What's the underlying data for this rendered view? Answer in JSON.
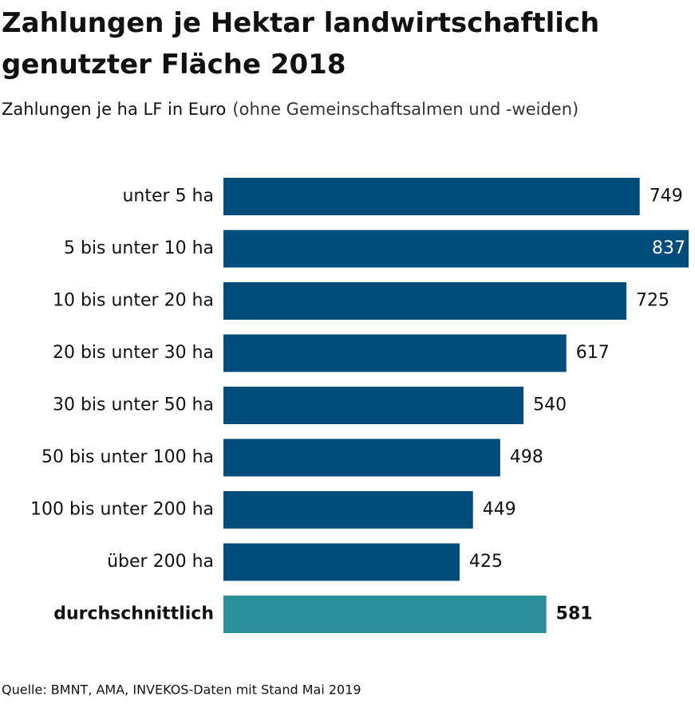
{
  "chart_data": {
    "type": "bar",
    "orientation": "horizontal",
    "title": "Zahlungen je Hektar landwirtschaftlich genutzter Fläche 2018",
    "subtitle": "Zahlungen je ha LF in Euro",
    "subtitle_note": "(ohne Gemeinschaftsalmen und -weiden)",
    "source": "Quelle: BMNT, AMA, INVEKOS-Daten mit Stand Mai 2019",
    "categories": [
      "unter 5 ha",
      "5 bis unter 10 ha",
      "10 bis unter 20 ha",
      "20 bis unter 30 ha",
      "30 bis unter 50 ha",
      "50 bis unter 100 ha",
      "100 bis unter 200 ha",
      "über 200 ha",
      "durchschnittlich"
    ],
    "values": [
      749,
      837,
      725,
      617,
      540,
      498,
      449,
      425,
      581
    ],
    "colors": [
      "#004c7b",
      "#004c7b",
      "#004c7b",
      "#004c7b",
      "#004c7b",
      "#004c7b",
      "#004c7b",
      "#004c7b",
      "#2b8f99"
    ],
    "highlight": 8
  }
}
